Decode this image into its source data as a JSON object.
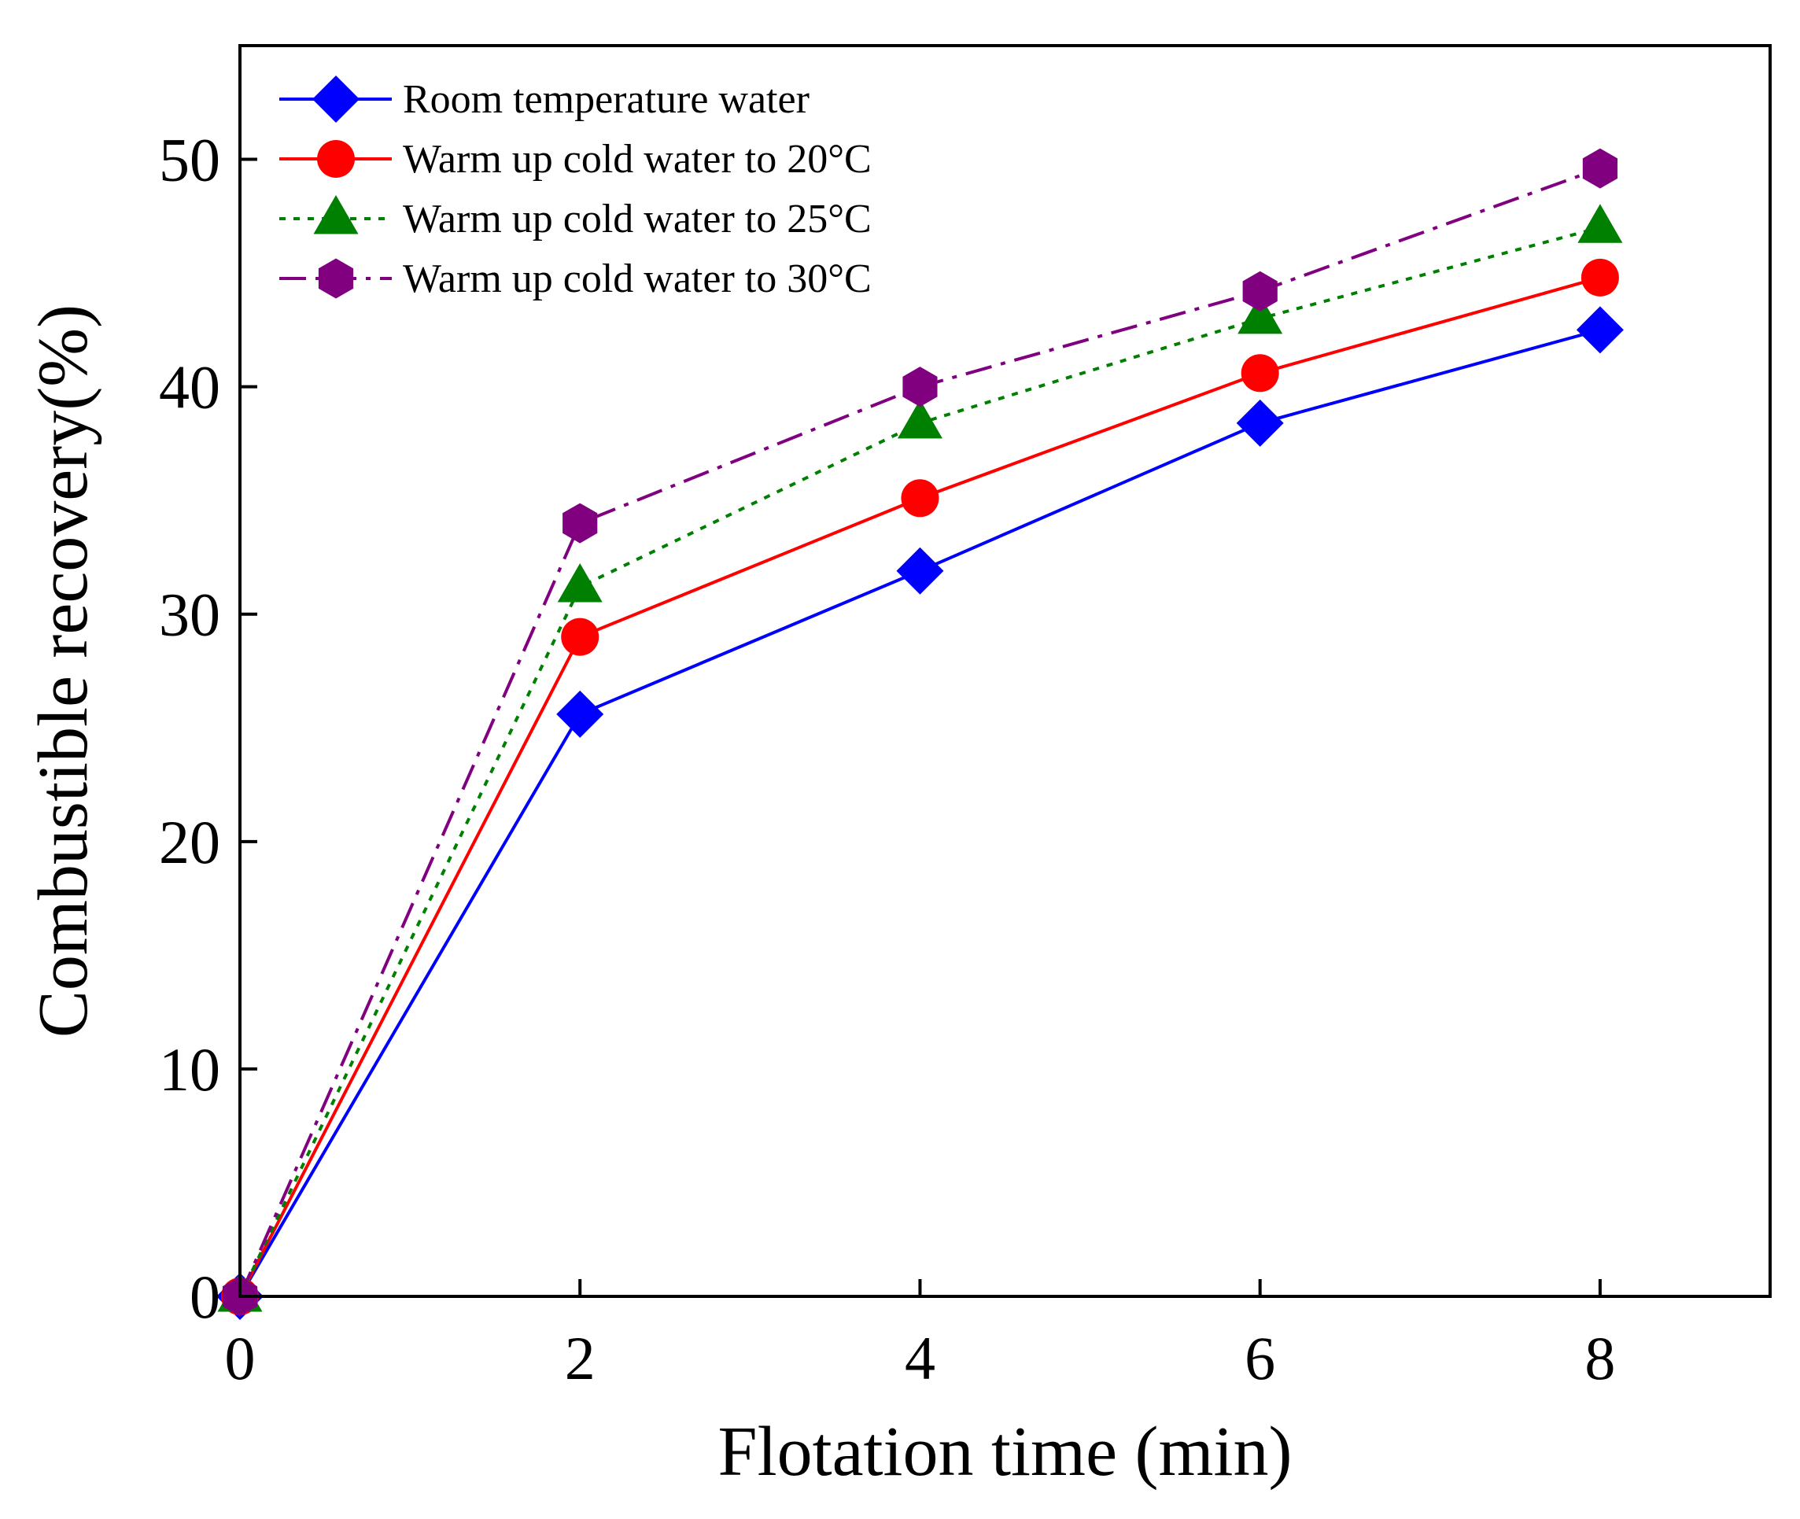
{
  "chart_data": {
    "type": "line",
    "title": "",
    "xlabel": "Flotation time (min)",
    "ylabel": "Combustible recovery(%)",
    "xlim": [
      0,
      9
    ],
    "ylim": [
      0,
      55
    ],
    "xticks": [
      0,
      2,
      4,
      6,
      8
    ],
    "yticks": [
      0,
      10,
      20,
      30,
      40,
      50
    ],
    "grid": false,
    "legend_position": "top-left",
    "x": [
      0,
      2,
      4,
      6,
      8
    ],
    "series": [
      {
        "name": "Room temperature water",
        "values": [
          0,
          25.6,
          31.9,
          38.4,
          42.5
        ],
        "color": "#0000ff",
        "marker": "diamond",
        "dash": "solid"
      },
      {
        "name": "Warm up cold water to 20°C",
        "values": [
          0,
          29.0,
          35.1,
          40.6,
          44.8
        ],
        "color": "#ff0000",
        "marker": "circle",
        "dash": "solid"
      },
      {
        "name": "Warm up cold water to 25°C",
        "values": [
          0,
          31.2,
          38.4,
          43.0,
          47.0
        ],
        "color": "#008000",
        "marker": "triangle",
        "dash": "dot"
      },
      {
        "name": "Warm up cold water to 30°C",
        "values": [
          0,
          34.0,
          40.0,
          44.2,
          49.6
        ],
        "color": "#800080",
        "marker": "hexagon",
        "dash": "dashdot"
      }
    ]
  }
}
